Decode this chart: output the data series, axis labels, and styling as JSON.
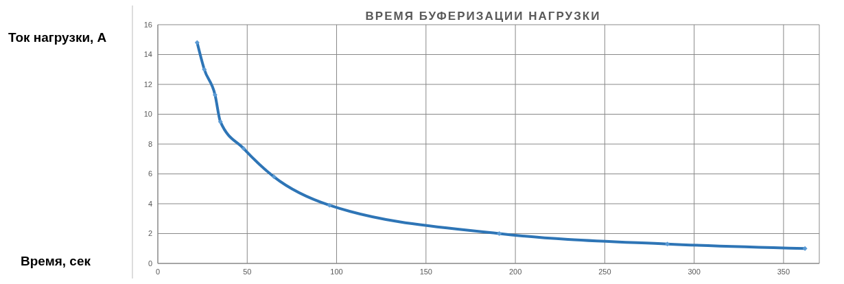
{
  "chart_data": {
    "type": "line",
    "title": "ВРЕМЯ БУФЕРИЗАЦИИ НАГРУЗКИ",
    "xlabel": "Время, сек",
    "ylabel": "Ток нагрузки, А",
    "x": [
      22,
      26,
      32,
      35,
      48,
      65,
      96,
      191,
      285,
      362
    ],
    "series": [
      {
        "color": "#2e75b6",
        "values": [
          14.8,
          13,
          11.3,
          9.5,
          7.7,
          5.8,
          3.9,
          2.0,
          1.3,
          1.0
        ]
      }
    ],
    "xlim": [
      0,
      370
    ],
    "xticks": [
      0,
      50,
      100,
      150,
      200,
      250,
      300,
      350
    ],
    "ylim": [
      0,
      16
    ],
    "yticks": [
      0,
      2,
      4,
      6,
      8,
      10,
      12,
      14,
      16
    ],
    "grid": true,
    "marker": "diamond",
    "line_style": "solid"
  }
}
